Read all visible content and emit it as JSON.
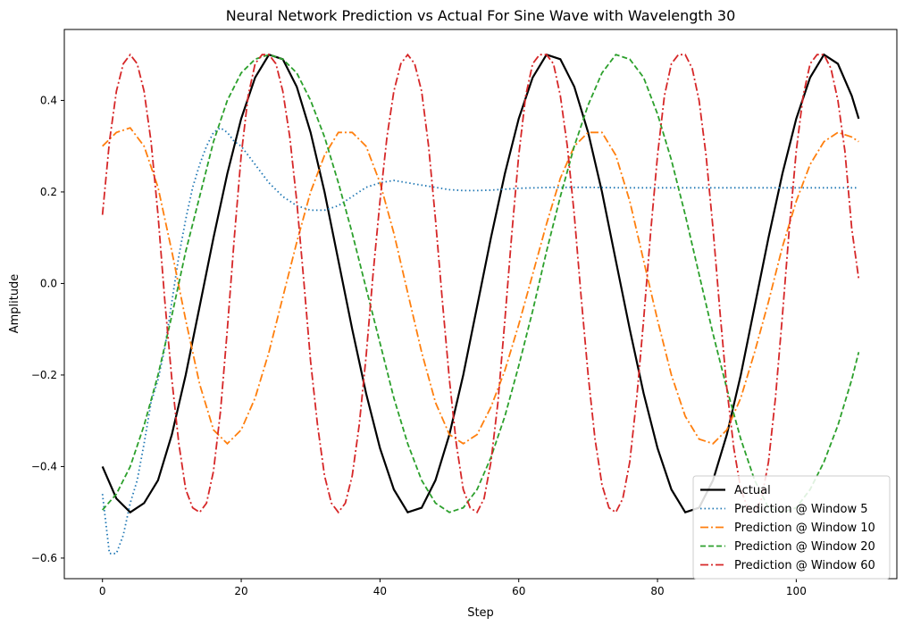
{
  "chart_data": {
    "type": "line",
    "title": "Neural Network Prediction vs Actual For Sine Wave with Wavelength 30",
    "xlabel": "Step",
    "ylabel": "Amplitude",
    "xlim": [
      -5.5,
      114.5
    ],
    "ylim": [
      -0.645,
      0.555
    ],
    "xticks": [
      0,
      20,
      40,
      60,
      80,
      100
    ],
    "xtick_labels": [
      "0",
      "20",
      "40",
      "60",
      "80",
      "100"
    ],
    "yticks": [
      -0.6,
      -0.4,
      -0.2,
      0.0,
      0.2,
      0.4
    ],
    "ytick_labels": [
      "−0.6",
      "−0.4",
      "−0.2",
      "0.0",
      "0.2",
      "0.4"
    ],
    "grid": false,
    "legend_position": "lower right",
    "series": [
      {
        "name": "Actual",
        "color": "#000000",
        "style": "solid",
        "x": [
          0,
          2,
          4,
          6,
          8,
          10,
          12,
          14,
          16,
          18,
          20,
          22,
          24,
          26,
          28,
          30,
          32,
          34,
          36,
          38,
          40,
          42,
          44,
          46,
          48,
          50,
          52,
          54,
          56,
          58,
          60,
          62,
          64,
          66,
          68,
          70,
          72,
          74,
          76,
          78,
          80,
          82,
          84,
          86,
          88,
          90,
          92,
          94,
          96,
          98,
          100,
          102,
          104,
          106,
          108,
          109
        ],
        "values": [
          -0.4,
          -0.47,
          -0.5,
          -0.48,
          -0.43,
          -0.33,
          -0.2,
          -0.05,
          0.1,
          0.24,
          0.36,
          0.45,
          0.5,
          0.49,
          0.43,
          0.33,
          0.2,
          0.05,
          -0.1,
          -0.24,
          -0.36,
          -0.45,
          -0.5,
          -0.49,
          -0.43,
          -0.33,
          -0.2,
          -0.05,
          0.1,
          0.24,
          0.36,
          0.45,
          0.5,
          0.49,
          0.43,
          0.33,
          0.2,
          0.05,
          -0.1,
          -0.24,
          -0.36,
          -0.45,
          -0.5,
          -0.49,
          -0.43,
          -0.33,
          -0.2,
          -0.05,
          0.1,
          0.24,
          0.36,
          0.45,
          0.5,
          0.48,
          0.41,
          0.36
        ]
      },
      {
        "name": "Prediction @ Window 5",
        "color": "#1f77b4",
        "style": "dotted",
        "x": [
          0,
          1,
          2,
          3,
          4,
          5,
          6,
          7,
          8,
          9,
          10,
          11,
          12,
          13,
          14,
          15,
          16,
          17,
          18,
          19,
          20,
          22,
          24,
          26,
          28,
          30,
          32,
          34,
          36,
          38,
          40,
          42,
          44,
          46,
          48,
          50,
          52,
          54,
          56,
          58,
          60,
          65,
          70,
          75,
          80,
          85,
          90,
          95,
          100,
          105,
          109
        ],
        "values": [
          -0.46,
          -0.59,
          -0.59,
          -0.55,
          -0.48,
          -0.43,
          -0.35,
          -0.26,
          -0.21,
          -0.14,
          -0.04,
          0.06,
          0.14,
          0.21,
          0.26,
          0.3,
          0.33,
          0.34,
          0.33,
          0.31,
          0.3,
          0.26,
          0.22,
          0.19,
          0.17,
          0.16,
          0.16,
          0.17,
          0.19,
          0.21,
          0.22,
          0.225,
          0.22,
          0.215,
          0.21,
          0.205,
          0.203,
          0.203,
          0.204,
          0.206,
          0.208,
          0.21,
          0.21,
          0.209,
          0.209,
          0.209,
          0.209,
          0.209,
          0.209,
          0.209,
          0.209
        ]
      },
      {
        "name": "Prediction @ Window 10",
        "color": "#ff7f0e",
        "style": "dashdot",
        "x": [
          0,
          2,
          4,
          6,
          8,
          10,
          12,
          14,
          16,
          18,
          20,
          22,
          24,
          26,
          28,
          30,
          32,
          34,
          36,
          38,
          40,
          42,
          44,
          46,
          48,
          50,
          52,
          54,
          56,
          58,
          60,
          62,
          64,
          66,
          68,
          70,
          72,
          74,
          76,
          78,
          80,
          82,
          84,
          86,
          88,
          90,
          92,
          94,
          96,
          98,
          100,
          102,
          104,
          106,
          108,
          109
        ],
        "values": [
          0.3,
          0.33,
          0.34,
          0.3,
          0.21,
          0.07,
          -0.08,
          -0.22,
          -0.32,
          -0.35,
          -0.32,
          -0.25,
          -0.15,
          -0.03,
          0.09,
          0.2,
          0.28,
          0.33,
          0.33,
          0.3,
          0.22,
          0.11,
          -0.02,
          -0.15,
          -0.26,
          -0.33,
          -0.35,
          -0.33,
          -0.27,
          -0.19,
          -0.09,
          0.02,
          0.13,
          0.23,
          0.3,
          0.33,
          0.33,
          0.28,
          0.18,
          0.05,
          -0.08,
          -0.2,
          -0.29,
          -0.34,
          -0.35,
          -0.32,
          -0.25,
          -0.15,
          -0.04,
          0.08,
          0.18,
          0.26,
          0.31,
          0.33,
          0.32,
          0.31
        ]
      },
      {
        "name": "Prediction @ Window 20",
        "color": "#2ca02c",
        "style": "dashed",
        "x": [
          0,
          2,
          4,
          6,
          8,
          10,
          12,
          14,
          16,
          18,
          20,
          22,
          24,
          26,
          28,
          30,
          32,
          34,
          36,
          38,
          40,
          42,
          44,
          46,
          48,
          50,
          52,
          54,
          56,
          58,
          60,
          62,
          64,
          66,
          68,
          70,
          72,
          74,
          76,
          78,
          80,
          82,
          84,
          86,
          88,
          90,
          92,
          94,
          96,
          98,
          100,
          102,
          104,
          106,
          108,
          109
        ],
        "values": [
          -0.495,
          -0.46,
          -0.4,
          -0.31,
          -0.2,
          -0.07,
          0.07,
          0.19,
          0.31,
          0.4,
          0.46,
          0.49,
          0.5,
          0.49,
          0.46,
          0.4,
          0.32,
          0.22,
          0.11,
          -0.01,
          -0.13,
          -0.25,
          -0.35,
          -0.43,
          -0.48,
          -0.5,
          -0.49,
          -0.45,
          -0.38,
          -0.29,
          -0.18,
          -0.06,
          0.07,
          0.19,
          0.3,
          0.39,
          0.46,
          0.5,
          0.49,
          0.45,
          0.37,
          0.27,
          0.15,
          0.02,
          -0.11,
          -0.23,
          -0.34,
          -0.43,
          -0.49,
          -0.5,
          -0.49,
          -0.45,
          -0.39,
          -0.31,
          -0.21,
          -0.15
        ]
      },
      {
        "name": "Prediction @ Window 60",
        "color": "#d62728",
        "style": "dashdot",
        "x": [
          0,
          1,
          2,
          3,
          4,
          5,
          6,
          7,
          8,
          9,
          10,
          11,
          12,
          13,
          14,
          15,
          16,
          17,
          18,
          19,
          20,
          21,
          22,
          23,
          24,
          25,
          26,
          27,
          28,
          29,
          30,
          31,
          32,
          33,
          34,
          35,
          36,
          37,
          38,
          39,
          40,
          41,
          42,
          43,
          44,
          45,
          46,
          47,
          48,
          49,
          50,
          51,
          52,
          53,
          54,
          55,
          56,
          57,
          58,
          59,
          60,
          61,
          62,
          63,
          64,
          65,
          66,
          67,
          68,
          69,
          70,
          71,
          72,
          73,
          74,
          75,
          76,
          77,
          78,
          79,
          80,
          81,
          82,
          83,
          84,
          85,
          86,
          87,
          88,
          89,
          90,
          91,
          92,
          93,
          94,
          95,
          96,
          97,
          98,
          99,
          100,
          101,
          102,
          103,
          104,
          105,
          106,
          107,
          108,
          109
        ],
        "values": [
          0.15,
          0.31,
          0.42,
          0.48,
          0.5,
          0.48,
          0.42,
          0.31,
          0.15,
          -0.04,
          -0.21,
          -0.35,
          -0.45,
          -0.49,
          -0.5,
          -0.48,
          -0.41,
          -0.28,
          -0.1,
          0.1,
          0.28,
          0.41,
          0.48,
          0.5,
          0.5,
          0.48,
          0.42,
          0.32,
          0.18,
          0.01,
          -0.17,
          -0.31,
          -0.42,
          -0.48,
          -0.5,
          -0.48,
          -0.42,
          -0.31,
          -0.16,
          0.02,
          0.18,
          0.32,
          0.42,
          0.48,
          0.5,
          0.48,
          0.42,
          0.3,
          0.14,
          -0.04,
          -0.21,
          -0.35,
          -0.45,
          -0.49,
          -0.5,
          -0.47,
          -0.39,
          -0.26,
          -0.08,
          0.11,
          0.28,
          0.41,
          0.48,
          0.5,
          0.5,
          0.48,
          0.41,
          0.3,
          0.15,
          -0.03,
          -0.2,
          -0.34,
          -0.44,
          -0.49,
          -0.5,
          -0.47,
          -0.39,
          -0.25,
          -0.08,
          0.11,
          0.28,
          0.41,
          0.48,
          0.5,
          0.5,
          0.47,
          0.4,
          0.28,
          0.12,
          -0.06,
          -0.23,
          -0.36,
          -0.45,
          -0.49,
          -0.5,
          -0.47,
          -0.39,
          -0.25,
          -0.07,
          0.12,
          0.29,
          0.41,
          0.48,
          0.5,
          0.5,
          0.47,
          0.4,
          0.29,
          0.12,
          0.01
        ]
      }
    ]
  }
}
